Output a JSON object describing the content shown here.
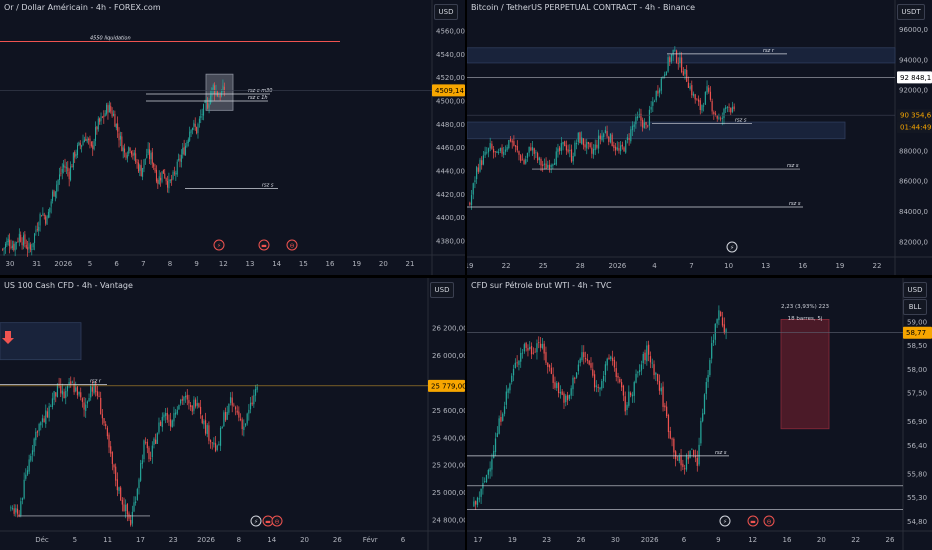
{
  "colors": {
    "up": "#26a69a",
    "down": "#ef5350",
    "bg": "#0f1320",
    "axis_text": "#b2b5be",
    "zone": "#1e2a44",
    "zone_border": "#2f3d5c",
    "line": "#d1d4dc",
    "red_line": "#ef5350"
  },
  "icons": [
    "lightning-icon",
    "event-flag-icon",
    "dividend-icon",
    "sell-arrow-icon"
  ],
  "chart_data": [
    {
      "id": "gold",
      "type": "candlestick",
      "title": "Or / Dollar Américain - 4h - FOREX.com",
      "currency": "USD",
      "ylim": [
        4368,
        4566
      ],
      "y_ticks": [
        4380,
        4400,
        4420,
        4440,
        4460,
        4480,
        4500,
        4520,
        4540,
        4560
      ],
      "y_tick_labels": [
        "4380,00",
        "4400,00",
        "4420,00",
        "4440,00",
        "4460,00",
        "4480,00",
        "4500,00",
        "4520,00",
        "4540,00",
        "4560,00"
      ],
      "price_label": "4509,14",
      "last_price": 4509.14,
      "x_ticks": [
        "30",
        "31",
        "2026",
        "5",
        "6",
        "7",
        "8",
        "9",
        "12",
        "13",
        "14",
        "15",
        "16",
        "19",
        "20",
        "21"
      ],
      "annotations": [
        {
          "text": "4550 liquidation",
          "price": 4551
        },
        {
          "text": "rsz c m30",
          "price": 4506
        },
        {
          "text": "rsz c 1h",
          "price": 4500
        },
        {
          "text": "rsz s",
          "price": 4425
        }
      ],
      "ohlc_path": [
        4373,
        4380,
        4376,
        4385,
        4378,
        4372,
        4390,
        4405,
        4398,
        4420,
        4432,
        4445,
        4438,
        4455,
        4462,
        4470,
        4458,
        4478,
        4485,
        4495,
        4488,
        4470,
        4455,
        4462,
        4448,
        4440,
        4455,
        4450,
        4432,
        4440,
        4428,
        4436,
        4450,
        4462,
        4480,
        4475,
        4490,
        4498,
        4512,
        4505,
        4509
      ]
    },
    {
      "id": "btc",
      "type": "candlestick",
      "title": "Bitcoin / TetherUS PERPETUAL CONTRACT - 4h - Binance",
      "currency": "USDT",
      "ylim": [
        81000,
        96500
      ],
      "y_ticks": [
        82000,
        84000,
        86000,
        88000,
        90000,
        92000,
        94000,
        96000
      ],
      "y_tick_labels": [
        "82000,0",
        "84000,0",
        "86000,0",
        "88000,0",
        "90000,0",
        "92000,0",
        "94000,0",
        "96000,0"
      ],
      "price_labels": [
        "92 848,1",
        "90 354,6",
        "01:44:49"
      ],
      "last_price": 90354.6,
      "x_ticks": [
        "19",
        "22",
        "25",
        "28",
        "2026",
        "4",
        "7",
        "10",
        "13",
        "16",
        "19",
        "22"
      ],
      "annotations": [
        {
          "text": "rsz r",
          "price": 94400
        },
        {
          "text": "rsz s",
          "price": 89800
        },
        {
          "text": "rsz s",
          "price": 86800
        },
        {
          "text": "rsz s",
          "price": 84300
        }
      ],
      "ohlc_path": [
        84500,
        86800,
        87500,
        88200,
        87600,
        88100,
        88800,
        87900,
        87200,
        88300,
        87400,
        86900,
        87300,
        87800,
        88500,
        87600,
        88900,
        88400,
        87800,
        88700,
        89300,
        88600,
        87900,
        88400,
        89600,
        90200,
        89500,
        91200,
        92400,
        93600,
        94500,
        93800,
        92800,
        91600,
        90800,
        91900,
        90600,
        89900,
        91200,
        90400
      ]
    },
    {
      "id": "nas",
      "type": "candlestick",
      "title": "US 100 Cash CFD - 4h - Vantage",
      "currency": "USD",
      "ylim": [
        24720,
        26420
      ],
      "y_ticks": [
        24800,
        25000,
        25200,
        25400,
        25600,
        25800,
        26000,
        26200
      ],
      "y_tick_labels": [
        "24 800,00",
        "25 000,00",
        "25 200,00",
        "25 400,00",
        "25 600,00",
        "25 800,00",
        "26 000,00",
        "26 200,00"
      ],
      "price_label": "25 779,00",
      "last_price": 25779,
      "x_ticks": [
        "Déc",
        "5",
        "11",
        "17",
        "23",
        "2026",
        "8",
        "14",
        "20",
        "26",
        "Févr",
        "6"
      ],
      "annotations": [
        {
          "text": "rsz r",
          "price": 25790
        }
      ],
      "ohlc_path": [
        24900,
        24820,
        25050,
        25300,
        25480,
        25520,
        25650,
        25750,
        25700,
        25790,
        25740,
        25600,
        25780,
        25720,
        25500,
        25250,
        25050,
        24900,
        24780,
        25050,
        25350,
        25250,
        25450,
        25580,
        25520,
        25650,
        25700,
        25600,
        25700,
        25500,
        25400,
        25300,
        25550,
        25650,
        25580,
        25480,
        25620,
        25779
      ]
    },
    {
      "id": "oil",
      "type": "candlestick",
      "title": "CFD sur Pétrole brut WTI - 4h - TVC",
      "currency": "USD",
      "currency2": "BLL",
      "ylim": [
        54.6,
        59.5
      ],
      "y_ticks": [
        54.8,
        55.3,
        55.8,
        56.4,
        56.9,
        57.5,
        58.0,
        58.5,
        59.0
      ],
      "y_tick_labels": [
        "54,80",
        "55,30",
        "55,80",
        "56,40",
        "56,90",
        "57,50",
        "58,00",
        "58,50",
        "59,00"
      ],
      "price_label": "58,77",
      "last_price": 58.77,
      "x_ticks": [
        "17",
        "19",
        "23",
        "26",
        "30",
        "2026",
        "6",
        "9",
        "12",
        "16",
        "20",
        "22",
        "26"
      ],
      "measure_box": {
        "line1": "2,23 (3,93%) 223",
        "line2": "18 barres, 5j"
      },
      "annotations": [
        {
          "text": "rsz s",
          "price": 56.18
        }
      ],
      "ohlc_path": [
        55.1,
        55.4,
        55.9,
        56.5,
        57.2,
        57.7,
        58.2,
        58.5,
        58.4,
        58.6,
        58.2,
        57.8,
        57.5,
        57.3,
        57.9,
        58.3,
        58.1,
        57.6,
        57.9,
        58.3,
        57.8,
        57.2,
        57.6,
        58.0,
        58.4,
        58.0,
        57.5,
        56.8,
        56.2,
        55.9,
        56.3,
        56.1,
        57.5,
        58.5,
        59.3,
        58.77
      ]
    }
  ]
}
